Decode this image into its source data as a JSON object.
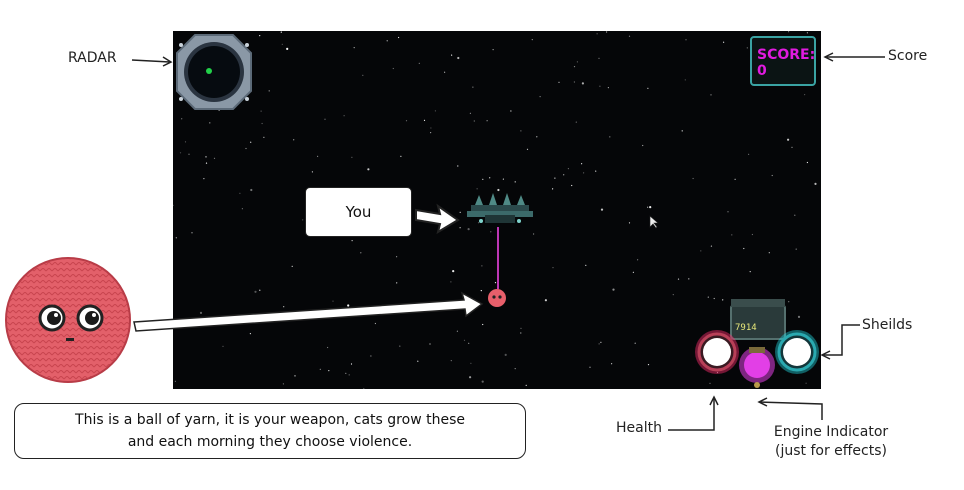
{
  "annotations": {
    "radar": "RADAR",
    "score": "Score",
    "shields": "Sheilds",
    "health": "Health",
    "engine_line1": "Engine Indicator",
    "engine_line2": "(just for effects)",
    "you": "You",
    "caption_line1": "This is a ball of yarn, it is your weapon, cats grow these",
    "caption_line2": "and each morning they choose violence."
  },
  "hud": {
    "score_label": "SCORE:",
    "score_value": "0",
    "engine_readout": "7914"
  },
  "colors": {
    "space": "#050608",
    "score_text": "#e11be0",
    "health_glow": "#ff2d6e",
    "shield_glow": "#22e6f0",
    "engine_glow": "#e23fe6",
    "radar_blip": "#22d14a",
    "yarn": "#e85f6b",
    "beam": "#d23cc8"
  },
  "icons": [
    "radar-icon",
    "player-ship-icon",
    "yarn-ball-icon",
    "health-orb-icon",
    "shield-orb-icon",
    "engine-orb-icon",
    "mouse-cursor-icon"
  ]
}
